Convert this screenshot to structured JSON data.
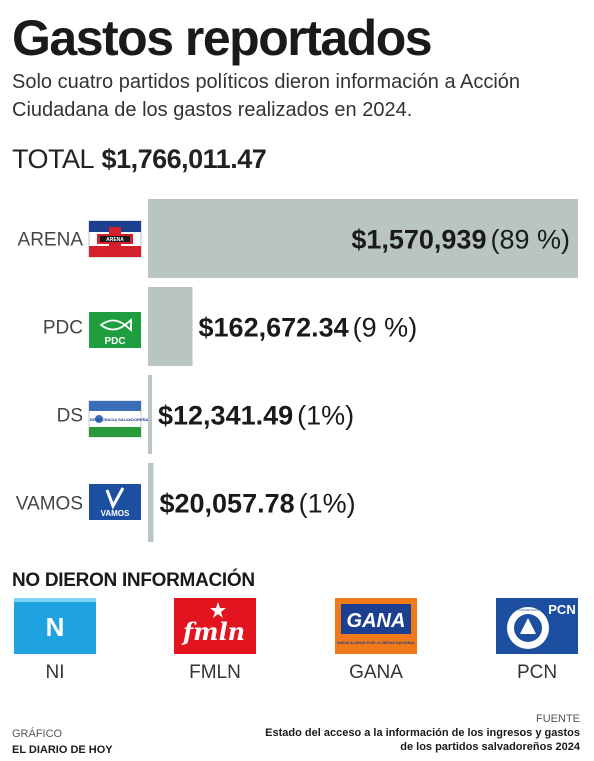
{
  "header": {
    "title": "Gastos reportados",
    "subtitle": "Solo cuatro partidos políticos dieron información a Acción Ciudadana de los gastos realizados en 2024.",
    "total_label": "TOTAL",
    "total_value": "$1,766,011.47"
  },
  "chart_data": {
    "type": "bar",
    "orientation": "horizontal",
    "title": "Gastos reportados",
    "categories": [
      "ARENA",
      "PDC",
      "DS",
      "VAMOS"
    ],
    "values": [
      1570939,
      162672.34,
      12341.49,
      20057.78
    ],
    "value_labels": [
      "$1,570,939",
      "$162,672.34",
      "$12,341.49",
      "$20,057.78"
    ],
    "percent_labels": [
      "(89 %)",
      "(9 %)",
      "(1%)",
      "(1%)"
    ],
    "bar_color": "#b8c6bf",
    "xlim": [
      0,
      1570939
    ],
    "grid": false
  },
  "no_data": {
    "title": "NO DIERON INFORMACIÓN",
    "parties": [
      {
        "label": "NI",
        "logo_text": "N",
        "color": "#1ea3e0"
      },
      {
        "label": "FMLN",
        "logo_text": "fmln",
        "color": "#e2141f"
      },
      {
        "label": "GANA",
        "logo_text": "GANA",
        "sub_text": "NUEVA ALIANZA POR LA UNIDAD NACIONAL",
        "color": "#f07a1a"
      },
      {
        "label": "PCN",
        "logo_text": "PCN",
        "seal_text": "PARTIDO DE CONCERTACIÓN NACIONAL",
        "color": "#1d4fa0"
      }
    ]
  },
  "party_logos": {
    "arena": "ARENA",
    "pdc": "PDC",
    "ds": "DEMOCRACIA SALVADOREÑA",
    "vamos": "VAMOS"
  },
  "credits": {
    "graphic_label": "GRÁFICO",
    "graphic_author": "EL DIARIO DE HOY",
    "source_label": "FUENTE",
    "source_line1": "Estado del acceso a la información de los ingresos y gastos",
    "source_line2": "de los partidos salvadoreños 2024"
  }
}
